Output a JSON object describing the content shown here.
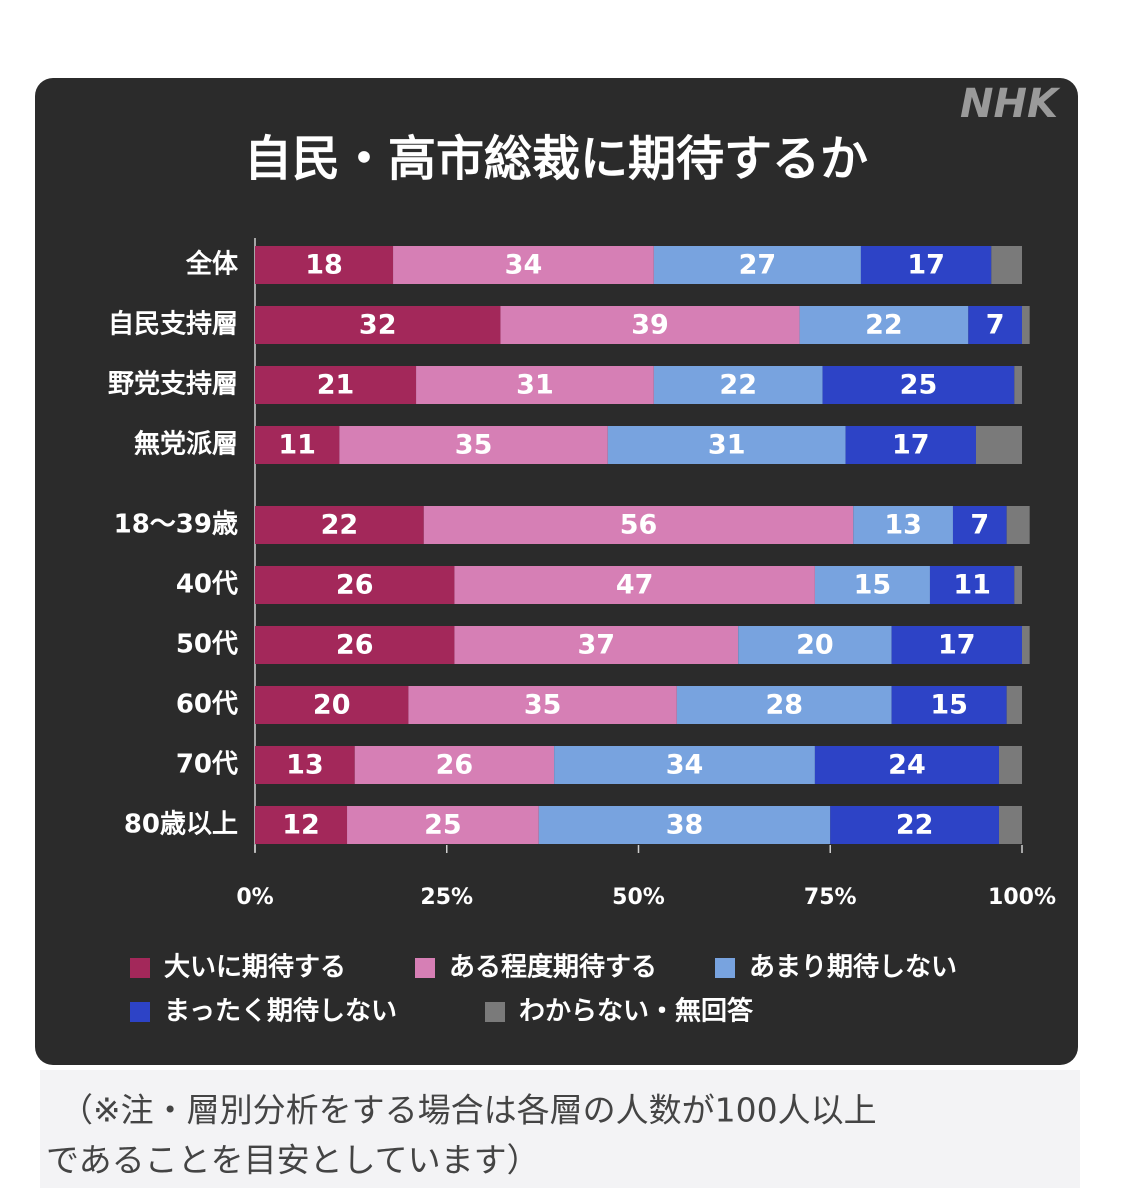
{
  "logo": "NHK",
  "note": [
    "（※注・層別分析をする場合は各層の人数が100人以上",
    "であることを目安としています）"
  ],
  "chart_data": {
    "type": "stacked-bar-horizontal",
    "title": "自民・高市総裁に期待するか",
    "categories": [
      "全体",
      "自民支持層",
      "野党支持層",
      "無党派層",
      "18〜39歳",
      "40代",
      "50代",
      "60代",
      "70代",
      "80歳以上"
    ],
    "series": [
      {
        "name": "大いに期待する",
        "color": "#a3285a",
        "show_values": true,
        "values": [
          18,
          32,
          21,
          11,
          22,
          26,
          26,
          20,
          13,
          12
        ]
      },
      {
        "name": "ある程度期待する",
        "color": "#d67fb5",
        "show_values": true,
        "values": [
          34,
          39,
          31,
          35,
          56,
          47,
          37,
          35,
          26,
          25
        ]
      },
      {
        "name": "あまり期待しない",
        "color": "#78a3df",
        "show_values": true,
        "values": [
          27,
          22,
          22,
          31,
          13,
          15,
          20,
          28,
          34,
          38
        ]
      },
      {
        "name": "まったく期待しない",
        "color": "#2d43c6",
        "show_values": true,
        "values": [
          17,
          7,
          25,
          17,
          7,
          11,
          17,
          15,
          24,
          22
        ]
      },
      {
        "name": "わからない・無回答",
        "color": "#7a7a7a",
        "show_values": false,
        "values": [
          4,
          1,
          1,
          6,
          3,
          1,
          1,
          2,
          3,
          3
        ]
      }
    ],
    "xlim": [
      0,
      100
    ],
    "xticks": [
      {
        "value": 0,
        "label": "0%"
      },
      {
        "value": 25,
        "label": "25%"
      },
      {
        "value": 50,
        "label": "50%"
      },
      {
        "value": 75,
        "label": "75%"
      },
      {
        "value": 100,
        "label": "100%"
      }
    ]
  }
}
